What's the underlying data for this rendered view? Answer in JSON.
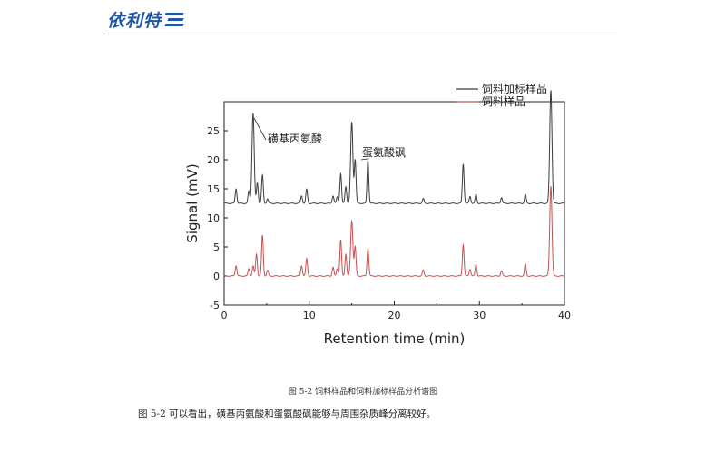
{
  "header": {
    "logo_text": "依利特"
  },
  "caption": "图 5-2   饲料样品和饲料加标样品分析谱图",
  "body_text": "图 5-2 可以看出，磺基丙氨酸和蛋氨酸砜能够与周围杂质峰分离较好。",
  "chart_data": {
    "type": "line",
    "xlabel": "Retention time (min)",
    "ylabel": "Signal (mV)",
    "xlim": [
      0,
      40
    ],
    "ylim": [
      -5,
      30
    ],
    "xticks": [
      0,
      10,
      20,
      30,
      40
    ],
    "yticks": [
      -5,
      0,
      5,
      10,
      15,
      20,
      25
    ],
    "grid": false,
    "legend_position": "top-right",
    "annotations": [
      {
        "text": "磺基丙氨酸",
        "x": 3.4,
        "y": 28
      },
      {
        "text": "蛋氨酸砜",
        "x": 16.9,
        "y": 20
      }
    ],
    "series": [
      {
        "name": "饲料加标样品",
        "color": "#3c3c3c",
        "baseline": 12.5,
        "peaks": [
          [
            1.4,
            15.0
          ],
          [
            2.9,
            14.6
          ],
          [
            3.4,
            28.0
          ],
          [
            3.9,
            16.0
          ],
          [
            4.5,
            17.3
          ],
          [
            5.1,
            13.3
          ],
          [
            9.1,
            13.8
          ],
          [
            9.7,
            14.9
          ],
          [
            12.8,
            13.8
          ],
          [
            13.3,
            13.6
          ],
          [
            13.7,
            17.6
          ],
          [
            14.3,
            15.4
          ],
          [
            15.0,
            26.5
          ],
          [
            15.4,
            20.0
          ],
          [
            16.9,
            20.0
          ],
          [
            23.4,
            13.3
          ],
          [
            28.1,
            19.3
          ],
          [
            28.9,
            13.7
          ],
          [
            29.6,
            14.0
          ],
          [
            32.6,
            13.5
          ],
          [
            35.4,
            14.0
          ],
          [
            38.4,
            32.0
          ]
        ]
      },
      {
        "name": "饲料样品",
        "color": "#c8504f",
        "baseline": 0.0,
        "peaks": [
          [
            1.4,
            1.8
          ],
          [
            2.9,
            1.3
          ],
          [
            3.4,
            1.7
          ],
          [
            3.8,
            3.8
          ],
          [
            4.5,
            7.0
          ],
          [
            5.1,
            1.0
          ],
          [
            9.1,
            1.8
          ],
          [
            9.7,
            3.0
          ],
          [
            12.8,
            1.5
          ],
          [
            13.3,
            1.3
          ],
          [
            13.7,
            6.2
          ],
          [
            14.3,
            3.8
          ],
          [
            15.0,
            9.5
          ],
          [
            15.4,
            5.0
          ],
          [
            16.9,
            4.8
          ],
          [
            23.4,
            1.0
          ],
          [
            28.1,
            5.4
          ],
          [
            28.9,
            1.2
          ],
          [
            29.6,
            2.0
          ],
          [
            32.6,
            0.9
          ],
          [
            35.4,
            2.0
          ],
          [
            38.4,
            15.5
          ]
        ]
      }
    ]
  }
}
